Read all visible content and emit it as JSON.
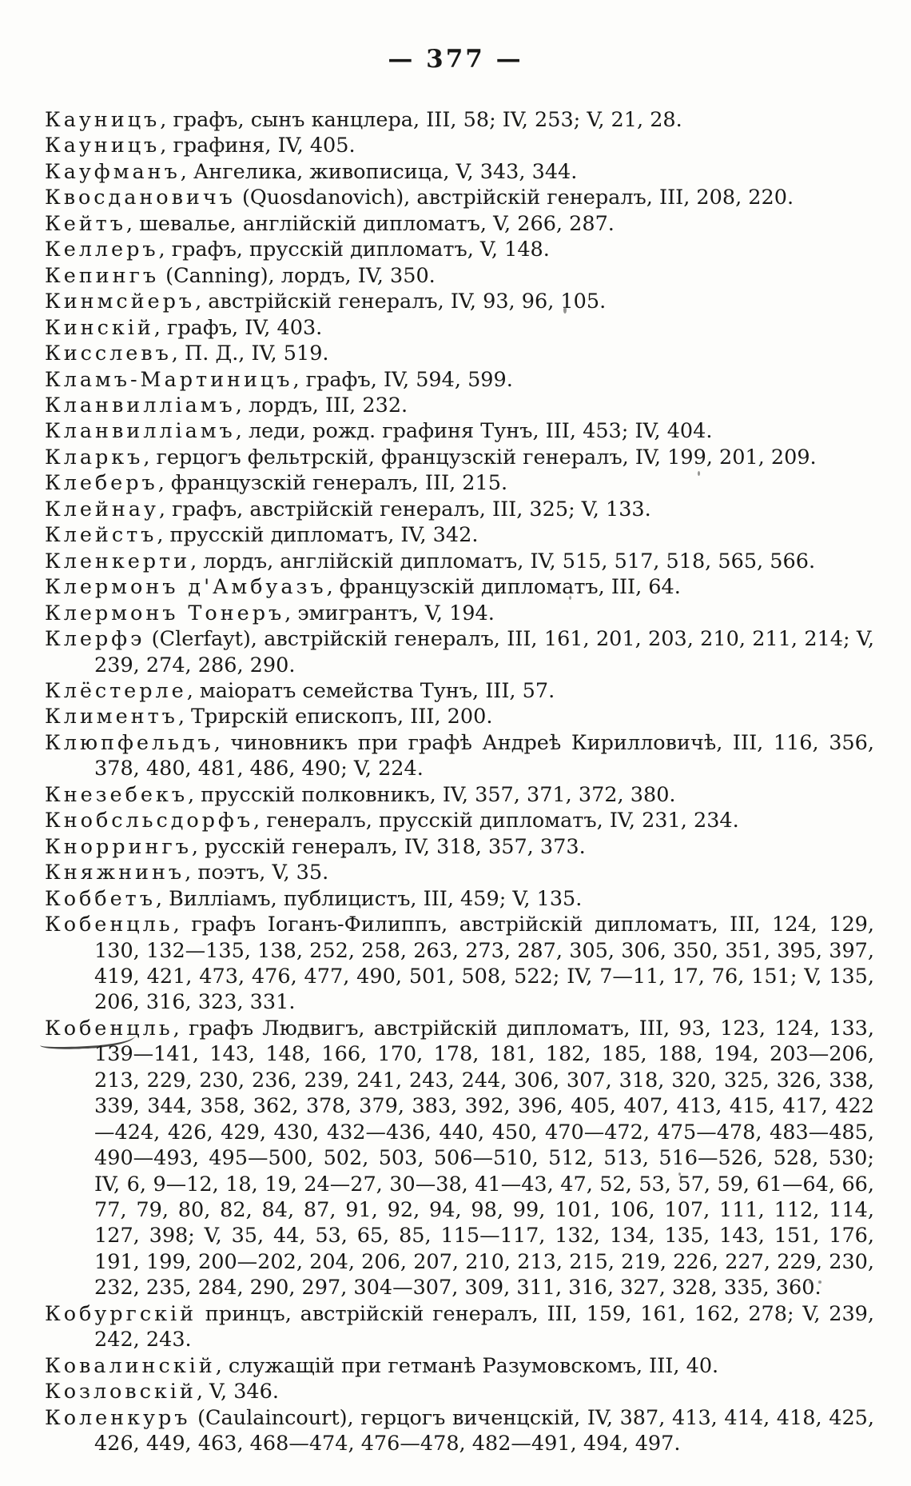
{
  "page": {
    "number_display": "— 377 —",
    "page_number": "377"
  },
  "colors": {
    "paper": "#fdfdfb",
    "ink": "#191917"
  },
  "index_entries": [
    {
      "term": "Кауницъ",
      "text": ", графъ, сынъ канцлера, III, 58; IV, 253; V, 21, 28."
    },
    {
      "term": "Кауницъ",
      "text": ", графиня, IV, 405."
    },
    {
      "term": "Кауфманъ",
      "text": ", Ангелика, живописица, V, 343, 344."
    },
    {
      "term": "Квосдановичъ",
      "text": " (Quosdanovich), австрійскій генералъ, III, 208, 220."
    },
    {
      "term": "Кейтъ",
      "text": ", шевалье, англійскій дипломатъ, V, 266, 287."
    },
    {
      "term": "Келлеръ",
      "text": ", графъ, прусскій дипломатъ, V, 148."
    },
    {
      "term": "Кепингъ",
      "text": " (Canning), лордъ, IV, 350."
    },
    {
      "term": "Кинмсйеръ",
      "text": ", австрійскій генералъ, IV, 93, 96, 105."
    },
    {
      "term": "Кинскій",
      "text": ", графъ, IV, 403."
    },
    {
      "term": "Кисслевъ",
      "text": ", П. Д., IV, 519."
    },
    {
      "term": "Кламъ-Мартиницъ",
      "text": ", графъ, IV, 594, 599."
    },
    {
      "term": "Кланвилліамъ",
      "text": ", лордъ, III, 232."
    },
    {
      "term": "Кланвилліамъ",
      "text": ", леди, рожд. графиня Тунъ, III, 453; IV, 404."
    },
    {
      "term": "Кларкъ",
      "text": ", герцогъ фельтрскій, французскій генералъ, IV, 199, 201, 209."
    },
    {
      "term": "Клеберъ",
      "text": ", французскій генералъ, III, 215."
    },
    {
      "term": "Клейнау",
      "text": ", графъ, австрійскій генералъ, III, 325; V, 133."
    },
    {
      "term": "Клейстъ",
      "text": ", прусскій дипломатъ, IV, 342."
    },
    {
      "term": "Кленкерти",
      "text": ", лордъ, англійскій дипломатъ, IV, 515, 517, 518, 565, 566."
    },
    {
      "term": "Клермонъ д'Амбуазъ",
      "text": ", французскій дипломатъ, III, 64."
    },
    {
      "term": "Клермонъ Тонеръ",
      "text": ", эмигрантъ, V, 194."
    },
    {
      "term": "Клерфэ",
      "text": " (Clerfayt), австрійскій генералъ, III, 161, 201, 203, 210, 211, 214; V, 239, 274, 286, 290."
    },
    {
      "term": "Клёстерле",
      "text": ", маіоратъ семейства Тунъ, III, 57."
    },
    {
      "term": "Климентъ",
      "text": ", Трирскій епископъ, III, 200."
    },
    {
      "term": "Клюпфельдъ",
      "text": ", чиновникъ при графѣ Андреѣ Кирилловичѣ, III, 116, 356, 378, 480, 481, 486, 490; V, 224."
    },
    {
      "term": "Кнезебекъ",
      "text": ", прусскій полковникъ, IV, 357, 371, 372, 380."
    },
    {
      "term": "Кнобсльсдорфъ",
      "text": ", генералъ, прусскій дипломатъ, IV, 231, 234."
    },
    {
      "term": "Кноррингъ",
      "text": ", русскій генералъ, IV, 318, 357, 373."
    },
    {
      "term": "Княжнинъ",
      "text": ", поэтъ, V, 35."
    },
    {
      "term": "Коббетъ",
      "text": ", Вилліамъ, публицистъ, III, 459; V, 135."
    },
    {
      "term": "Кобенцль",
      "text": ", графъ Іоганъ-Филиппъ, австрійскій дипломатъ, III, 124, 129, 130, 132—135, 138, 252, 258, 263, 273, 287, 305, 306, 350, 351, 395, 397, 419, 421, 473, 476, 477, 490, 501, 508, 522; IV, 7—11, 17, 76, 151; V, 135, 206, 316, 323, 331."
    },
    {
      "term": "Кобенцль",
      "marked": true,
      "text": ", графъ Людвигъ, австрійскій дипломатъ, III, 93, 123, 124, 133, 139—141, 143, 148, 166, 170, 178, 181, 182, 185, 188, 194, 203—206, 213, 229, 230, 236, 239, 241, 243, 244, 306, 307, 318, 320, 325, 326, 338, 339, 344, 358, 362, 378, 379, 383, 392, 396, 405, 407, 413, 415, 417, 422—424, 426, 429, 430, 432—436, 440, 450, 470—472, 475—478, 483—485, 490—493, 495—500, 502, 503, 506—510, 512, 513, 516—526, 528, 530; IV, 6, 9—12, 18, 19, 24—27, 30—38, 41—43, 47, 52, 53, 57, 59, 61—64, 66, 77, 79, 80, 82, 84, 87, 91, 92, 94, 98, 99, 101, 106, 107, 111, 112, 114, 127, 398; V, 35, 44, 53, 65, 85, 115—117, 132, 134, 135, 143, 151, 176, 191, 199, 200—202, 204, 206, 207, 210, 213, 215, 219, 226, 227, 229, 230, 232, 235, 284, 290, 297, 304—307, 309, 311, 316, 327, 328, 335, 360."
    },
    {
      "term": "Кобургскій",
      "text": " принцъ, австрійскій генералъ, III, 159, 161, 162, 278; V, 239, 242, 243."
    },
    {
      "term": "Ковалинскій",
      "text": ", служащій при гетманѣ Разумовскомъ, III, 40."
    },
    {
      "term": "Козловскій",
      "text": ", V, 346."
    },
    {
      "term": "Коленкуръ",
      "text": " (Caulaincourt), герцогъ виченцскій, IV, 387, 413, 414, 418, 425, 426, 449, 463, 468—474, 476—478, 482—491, 494, 497."
    }
  ]
}
